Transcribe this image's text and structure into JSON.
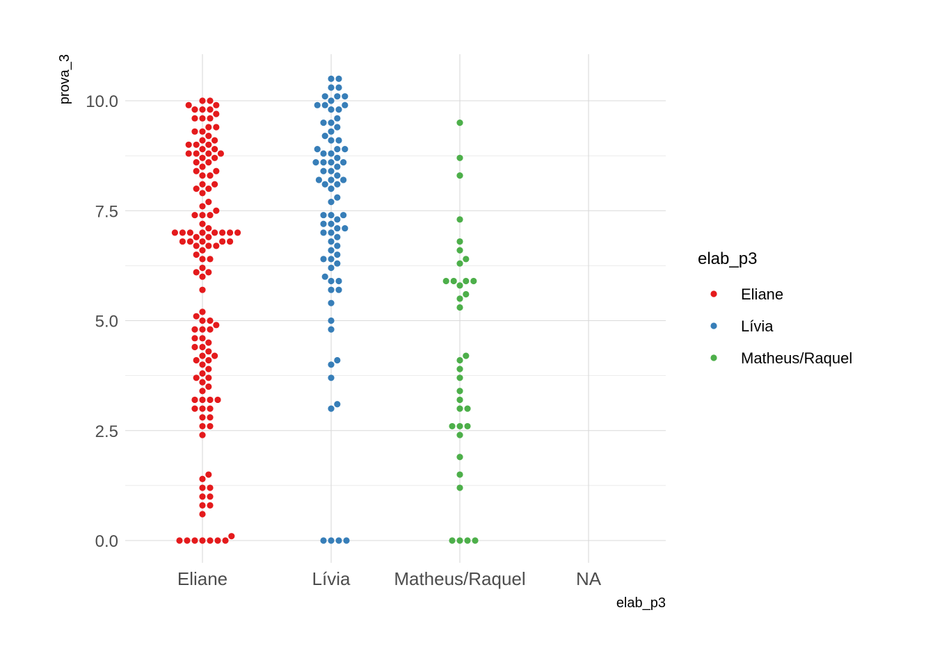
{
  "chart_data": {
    "type": "scatter",
    "subtype": "beeswarm",
    "xlabel": "elab_p3",
    "ylabel": "prova_3",
    "categories": [
      "Eliane",
      "Lívia",
      "Matheus/Raquel",
      "NA"
    ],
    "y_ticks": [
      "0.0",
      "2.5",
      "5.0",
      "7.5",
      "10.0"
    ],
    "ylim": [
      -0.5,
      11.0
    ],
    "grid": true,
    "legend": {
      "title": "elab_p3",
      "position": "right",
      "entries": [
        "Eliane",
        "Lívia",
        "Matheus/Raquel"
      ]
    },
    "colors": {
      "Eliane": "#E41A1C",
      "Lívia": "#377EB8",
      "Matheus/Raquel": "#4DAF4A",
      "grid": "#d9d9d9"
    },
    "series": [
      {
        "name": "Eliane",
        "category": "Eliane",
        "values": [
          10.0,
          10.0,
          9.9,
          9.9,
          9.8,
          9.8,
          9.8,
          9.7,
          9.6,
          9.6,
          9.6,
          9.4,
          9.4,
          9.3,
          9.3,
          9.2,
          9.1,
          9.1,
          9.0,
          9.0,
          9.0,
          8.9,
          8.9,
          8.8,
          8.8,
          8.8,
          8.8,
          8.7,
          8.7,
          8.6,
          8.6,
          8.5,
          8.4,
          8.4,
          8.3,
          8.3,
          8.1,
          8.1,
          8.0,
          8.0,
          7.9,
          7.7,
          7.6,
          7.5,
          7.4,
          7.4,
          7.4,
          7.2,
          7.1,
          7.0,
          7.0,
          7.0,
          7.0,
          7.0,
          7.0,
          7.0,
          7.0,
          6.9,
          6.9,
          6.8,
          6.8,
          6.8,
          6.8,
          6.8,
          6.7,
          6.7,
          6.7,
          6.6,
          6.5,
          6.4,
          6.4,
          6.2,
          6.1,
          6.1,
          6.0,
          5.7,
          5.2,
          5.1,
          5.0,
          5.0,
          4.9,
          4.8,
          4.8,
          4.8,
          4.6,
          4.6,
          4.5,
          4.4,
          4.4,
          4.3,
          4.2,
          4.2,
          4.1,
          4.1,
          4.0,
          3.9,
          3.8,
          3.7,
          3.7,
          3.6,
          3.5,
          3.4,
          3.2,
          3.2,
          3.2,
          3.2,
          3.0,
          3.0,
          3.0,
          2.8,
          2.8,
          2.6,
          2.6,
          2.4,
          1.5,
          1.4,
          1.2,
          1.2,
          1.0,
          1.0,
          0.8,
          0.8,
          0.6,
          0.1,
          0.0,
          0.0,
          0.0,
          0.0,
          0.0,
          0.0,
          0.0
        ]
      },
      {
        "name": "Lívia",
        "category": "Lívia",
        "values": [
          10.5,
          10.5,
          10.3,
          10.3,
          10.1,
          10.1,
          10.1,
          10.0,
          9.9,
          9.9,
          9.9,
          9.8,
          9.8,
          9.6,
          9.5,
          9.5,
          9.4,
          9.3,
          9.2,
          9.1,
          9.1,
          8.9,
          8.9,
          8.9,
          8.8,
          8.8,
          8.7,
          8.6,
          8.6,
          8.6,
          8.6,
          8.5,
          8.4,
          8.4,
          8.3,
          8.2,
          8.2,
          8.2,
          8.1,
          8.1,
          8.0,
          7.8,
          7.7,
          7.4,
          7.4,
          7.4,
          7.3,
          7.2,
          7.2,
          7.1,
          7.1,
          7.0,
          7.0,
          6.9,
          6.8,
          6.7,
          6.6,
          6.5,
          6.4,
          6.4,
          6.3,
          6.2,
          6.0,
          5.9,
          5.9,
          5.7,
          5.7,
          5.4,
          5.0,
          4.8,
          4.1,
          4.0,
          3.7,
          3.1,
          3.0,
          0.0,
          0.0,
          0.0,
          0.0
        ]
      },
      {
        "name": "Matheus/Raquel",
        "category": "Matheus/Raquel",
        "values": [
          9.5,
          8.7,
          8.3,
          7.3,
          6.8,
          6.6,
          6.4,
          6.3,
          5.9,
          5.9,
          5.9,
          5.9,
          5.8,
          5.6,
          5.5,
          5.3,
          4.2,
          4.1,
          3.9,
          3.7,
          3.4,
          3.2,
          3.0,
          3.0,
          2.6,
          2.6,
          2.6,
          2.4,
          1.9,
          1.5,
          1.2,
          0.0,
          0.0,
          0.0,
          0.0
        ]
      }
    ]
  }
}
